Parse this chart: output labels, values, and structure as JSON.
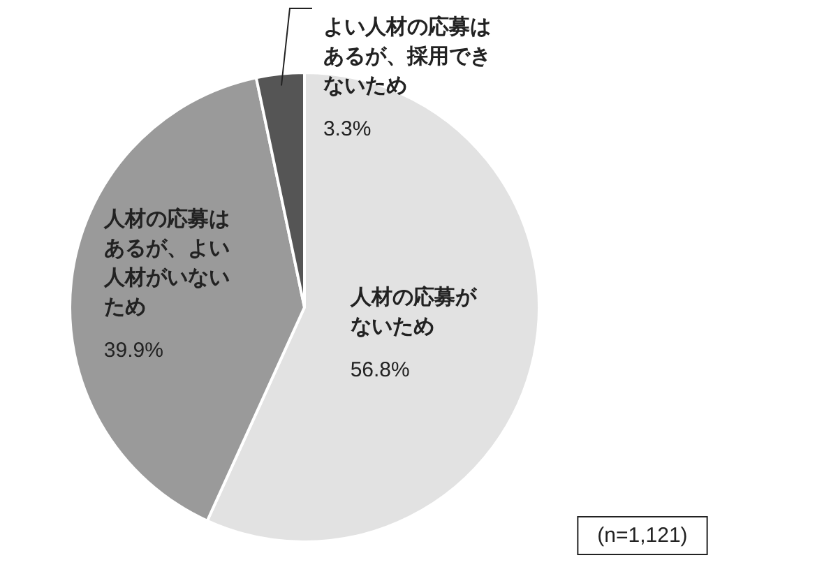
{
  "chart_data": {
    "type": "pie",
    "categories": [
      "人材の応募がないため",
      "人材の応募はあるが、よい人材がいないため",
      "よい人材の応募はあるが、採用できないため"
    ],
    "values": [
      56.8,
      39.9,
      3.3
    ],
    "colors": [
      "#e2e2e2",
      "#9a9a9a",
      "#555555"
    ],
    "value_labels": [
      "56.8%",
      "39.9%",
      "3.3%"
    ],
    "annotations": [
      "(n=1,121)"
    ]
  }
}
